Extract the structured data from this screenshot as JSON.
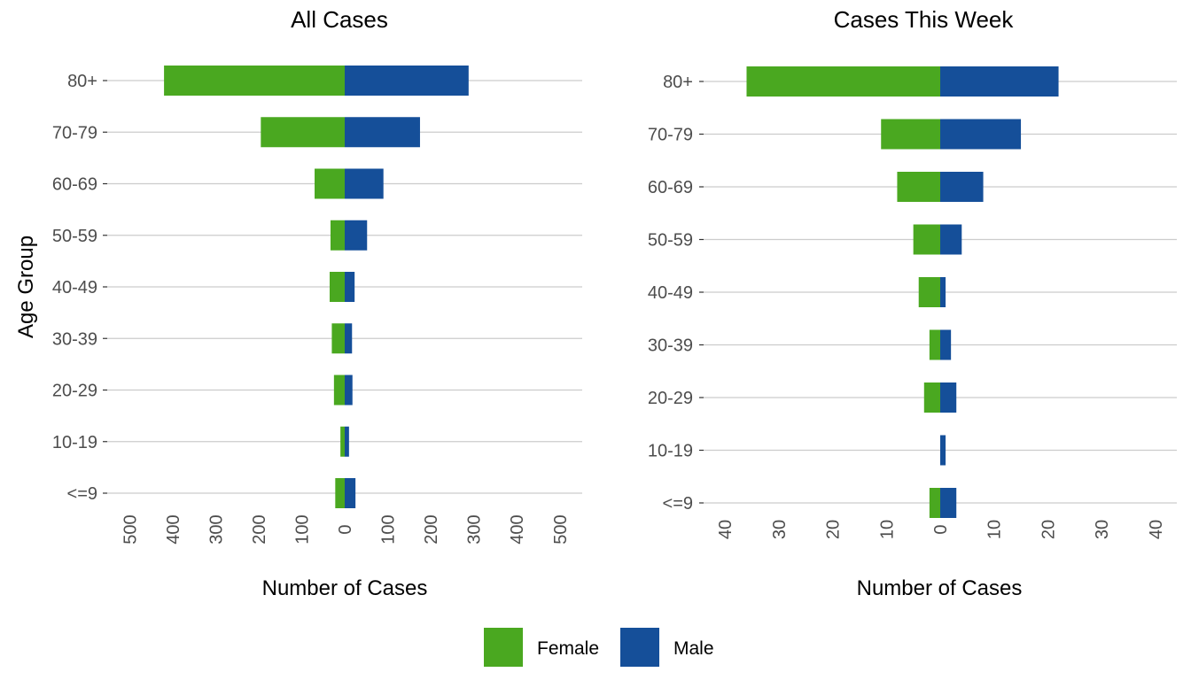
{
  "chart_data": [
    {
      "type": "bar",
      "orientation": "horizontal-population-pyramid",
      "title": "All Cases",
      "xlabel": "Number of Cases",
      "ylabel": "Age Group",
      "categories": [
        "80+",
        "70-79",
        "60-69",
        "50-59",
        "40-49",
        "30-39",
        "20-29",
        "10-19",
        "<=9"
      ],
      "series": [
        {
          "name": "Female",
          "color": "#4aa820",
          "values": [
            420,
            195,
            70,
            33,
            35,
            30,
            25,
            10,
            22
          ]
        },
        {
          "name": "Male",
          "color": "#154f99",
          "values": [
            288,
            175,
            90,
            52,
            23,
            17,
            18,
            10,
            25
          ]
        }
      ],
      "xlim": [
        -500,
        500
      ],
      "xticks": [
        -500,
        -400,
        -300,
        -200,
        -100,
        0,
        100,
        200,
        300,
        400,
        500
      ],
      "xtick_labels": [
        "500",
        "400",
        "300",
        "200",
        "100",
        "0",
        "100",
        "200",
        "300",
        "400",
        "500"
      ],
      "grid": "horizontal"
    },
    {
      "type": "bar",
      "orientation": "horizontal-population-pyramid",
      "title": "Cases This Week",
      "xlabel": "Number of Cases",
      "ylabel": "",
      "categories": [
        "80+",
        "70-79",
        "60-69",
        "50-59",
        "40-49",
        "30-39",
        "20-29",
        "10-19",
        "<=9"
      ],
      "series": [
        {
          "name": "Female",
          "color": "#4aa820",
          "values": [
            36,
            11,
            8,
            5,
            4,
            2,
            3,
            0,
            2
          ]
        },
        {
          "name": "Male",
          "color": "#154f99",
          "values": [
            22,
            15,
            8,
            4,
            1,
            2,
            3,
            1,
            3
          ]
        }
      ],
      "xlim": [
        -40,
        40
      ],
      "xticks": [
        -40,
        -30,
        -20,
        -10,
        0,
        10,
        20,
        30,
        40
      ],
      "xtick_labels": [
        "40",
        "30",
        "20",
        "10",
        "0",
        "10",
        "20",
        "30",
        "40"
      ],
      "grid": "horizontal"
    }
  ],
  "legend": {
    "position": "bottom",
    "items": [
      {
        "label": "Female",
        "color": "#4aa820"
      },
      {
        "label": "Male",
        "color": "#154f99"
      }
    ]
  }
}
